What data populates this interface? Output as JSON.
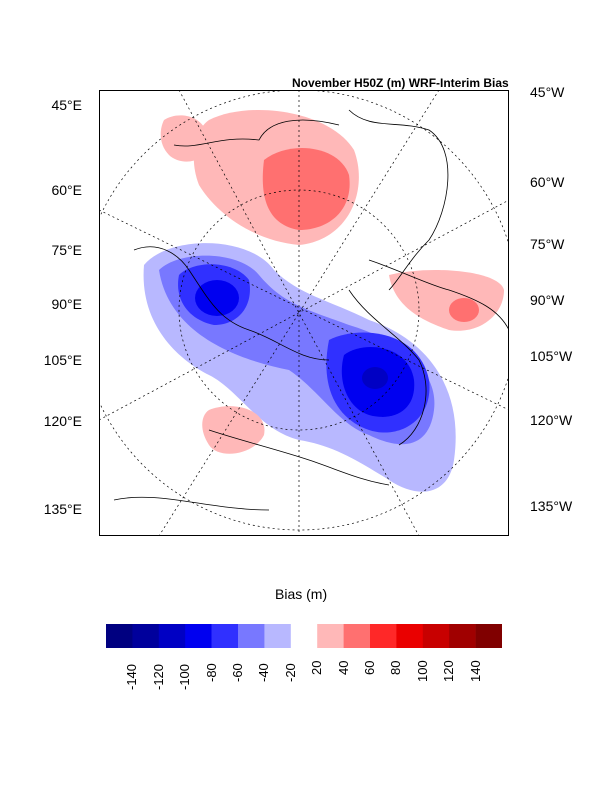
{
  "chart_data": {
    "type": "heatmap",
    "title": "November H50Z (m) WRF-Interim Bias",
    "left_tick_labels": [
      "45°E",
      "60°E",
      "75°E",
      "90°E",
      "105°E",
      "120°E",
      "135°E"
    ],
    "right_tick_labels": [
      "45°W",
      "60°W",
      "75°W",
      "90°W",
      "105°W",
      "120°W",
      "135°W"
    ],
    "colorbar": {
      "label": "Bias (m)",
      "tick_labels": [
        "-140",
        "-120",
        "-100",
        "-80",
        "-60",
        "-40",
        "-20",
        "20",
        "40",
        "60",
        "80",
        "100",
        "120",
        "140"
      ],
      "colors": [
        "#000080",
        "#00009c",
        "#0000c4",
        "#0000f0",
        "#3030ff",
        "#7878ff",
        "#b8b8ff",
        "#ffffff",
        "#ffb8b8",
        "#ff7070",
        "#ff2828",
        "#ea0000",
        "#c80000",
        "#a00000",
        "#800000"
      ]
    },
    "features": [
      {
        "name": "positive anomaly north",
        "max_bin": "40 to 60"
      },
      {
        "name": "negative anomaly west",
        "max_bin": "-80 to -60"
      },
      {
        "name": "negative anomaly center",
        "max_bin": "-120 to -100"
      },
      {
        "name": "positive anomaly east",
        "max_bin": "40 to 60"
      },
      {
        "name": "positive anomaly south-west",
        "max_bin": "20 to 40"
      }
    ]
  }
}
